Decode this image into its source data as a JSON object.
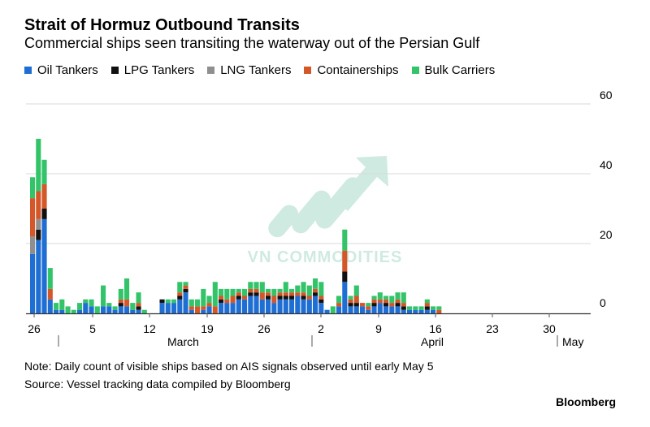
{
  "header": {
    "title": "Strait of Hormuz Outbound Transits",
    "subtitle": "Commercial ships seen transiting the waterway out of the Persian Gulf"
  },
  "footer": {
    "note": "Note: Daily count of visible ships based on AIS signals observed until early May 5",
    "source": "Source: Vessel tracking data compiled by Bloomberg",
    "brand": "Bloomberg"
  },
  "watermark": {
    "text": "VN COMMODITIES"
  },
  "chart_data": {
    "type": "bar",
    "stacked": true,
    "grid": true,
    "ylim": [
      0,
      60
    ],
    "y_ticks": [
      0,
      20,
      40,
      60
    ],
    "y_axis_side": "right",
    "legend_position": "top",
    "x_tick_labels": [
      "26",
      "5",
      "12",
      "19",
      "26",
      "2",
      "9",
      "16",
      "23",
      "30"
    ],
    "x_month_labels": [
      "March",
      "April",
      "May"
    ],
    "series": [
      {
        "name": "Oil Tankers",
        "color": "#1f6ed4",
        "values": [
          17,
          21,
          27,
          4,
          1,
          1,
          0,
          0,
          1,
          3,
          2,
          0,
          2,
          2,
          1,
          2,
          2,
          1,
          1,
          0,
          0,
          0,
          3,
          3,
          3,
          4,
          6,
          1,
          0,
          1,
          2,
          0,
          3,
          3,
          3,
          4,
          4,
          5,
          5,
          4,
          4,
          3,
          4,
          4,
          4,
          5,
          4,
          4,
          5,
          3,
          1,
          0,
          2,
          9,
          2,
          2,
          2,
          1,
          2,
          3,
          2,
          2,
          2,
          1,
          1,
          1,
          1,
          1,
          1,
          0
        ]
      },
      {
        "name": "LPG Tankers",
        "color": "#111111",
        "values": [
          0,
          3,
          3,
          0,
          0,
          0,
          0,
          0,
          0,
          0,
          0,
          0,
          0,
          0,
          0,
          1,
          0,
          0,
          1,
          0,
          0,
          0,
          1,
          0,
          0,
          1,
          1,
          0,
          0,
          0,
          0,
          0,
          1,
          0,
          0,
          1,
          0,
          1,
          1,
          0,
          1,
          0,
          1,
          1,
          1,
          0,
          1,
          0,
          1,
          1,
          0,
          0,
          0,
          3,
          1,
          1,
          0,
          0,
          1,
          0,
          1,
          0,
          1,
          1,
          0,
          0,
          0,
          1,
          0,
          0
        ]
      },
      {
        "name": "LNG Tankers",
        "color": "#8f8f8f",
        "values": [
          5,
          3,
          0,
          0,
          0,
          0,
          0,
          0,
          0,
          0,
          0,
          0,
          0,
          0,
          0,
          0,
          0,
          0,
          0,
          0,
          0,
          0,
          0,
          0,
          0,
          0,
          0,
          0,
          0,
          0,
          0,
          0,
          0,
          0,
          0,
          0,
          0,
          0,
          0,
          0,
          0,
          0,
          0,
          0,
          0,
          0,
          0,
          0,
          0,
          0,
          0,
          0,
          0,
          0,
          0,
          0,
          0,
          0,
          0,
          0,
          0,
          0,
          0,
          0,
          0,
          0,
          0,
          0,
          0,
          0
        ]
      },
      {
        "name": "Containerships",
        "color": "#d4572a",
        "values": [
          11,
          8,
          7,
          3,
          0,
          0,
          0,
          0,
          0,
          0,
          0,
          0,
          0,
          0,
          0,
          1,
          2,
          0,
          1,
          0,
          0,
          0,
          0,
          0,
          0,
          1,
          1,
          1,
          2,
          1,
          1,
          2,
          1,
          1,
          2,
          1,
          1,
          1,
          1,
          2,
          1,
          2,
          1,
          1,
          1,
          1,
          1,
          1,
          1,
          1,
          0,
          0,
          1,
          6,
          1,
          2,
          1,
          1,
          1,
          1,
          1,
          1,
          1,
          1,
          0,
          0,
          0,
          1,
          0,
          1
        ]
      },
      {
        "name": "Bulk Carriers",
        "color": "#33c46a",
        "values": [
          6,
          15,
          7,
          6,
          2,
          3,
          2,
          1,
          2,
          1,
          2,
          2,
          6,
          1,
          1,
          3,
          6,
          2,
          3,
          1,
          0,
          0,
          0,
          1,
          1,
          3,
          1,
          2,
          2,
          5,
          2,
          7,
          2,
          3,
          2,
          1,
          2,
          2,
          2,
          3,
          1,
          2,
          1,
          3,
          1,
          2,
          3,
          3,
          3,
          4,
          0,
          2,
          2,
          6,
          1,
          3,
          0,
          1,
          1,
          2,
          1,
          2,
          2,
          3,
          1,
          1,
          1,
          1,
          1,
          1
        ]
      }
    ]
  }
}
